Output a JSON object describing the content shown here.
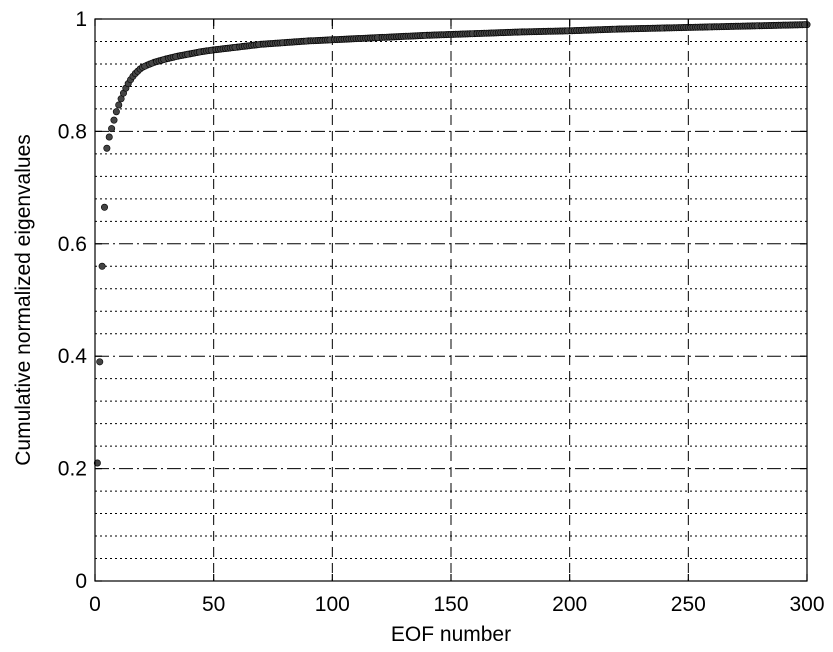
{
  "chart_data": {
    "type": "scatter",
    "title": "",
    "xlabel": "EOF number",
    "ylabel": "Cumulative normalized eigenvalues",
    "xlim": [
      0,
      300
    ],
    "ylim": [
      0,
      1
    ],
    "xticks": [
      0,
      50,
      100,
      150,
      200,
      250,
      300
    ],
    "yticks": [
      0,
      0.2,
      0.4,
      0.6,
      0.8,
      1
    ],
    "ytick_labels": [
      "0",
      "0.2",
      "0.4",
      "0.6",
      "0.8",
      "1"
    ],
    "grid": true,
    "series": [
      {
        "x": [
          1,
          2,
          3,
          4,
          5,
          6,
          7,
          8,
          9,
          10,
          11,
          12,
          13,
          14,
          15,
          16,
          17,
          18,
          19,
          20,
          22,
          25,
          30,
          35,
          40,
          45,
          50,
          60,
          70,
          80,
          90,
          100,
          120,
          140,
          160,
          180,
          200,
          220,
          240,
          260,
          280,
          300
        ],
        "y": [
          0.21,
          0.39,
          0.56,
          0.665,
          0.77,
          0.79,
          0.805,
          0.82,
          0.835,
          0.847,
          0.858,
          0.868,
          0.877,
          0.885,
          0.892,
          0.898,
          0.903,
          0.907,
          0.911,
          0.914,
          0.918,
          0.923,
          0.929,
          0.934,
          0.938,
          0.942,
          0.945,
          0.95,
          0.955,
          0.958,
          0.961,
          0.963,
          0.967,
          0.971,
          0.974,
          0.977,
          0.979,
          0.982,
          0.984,
          0.986,
          0.988,
          0.99
        ]
      }
    ],
    "marker_color": "#444444"
  }
}
